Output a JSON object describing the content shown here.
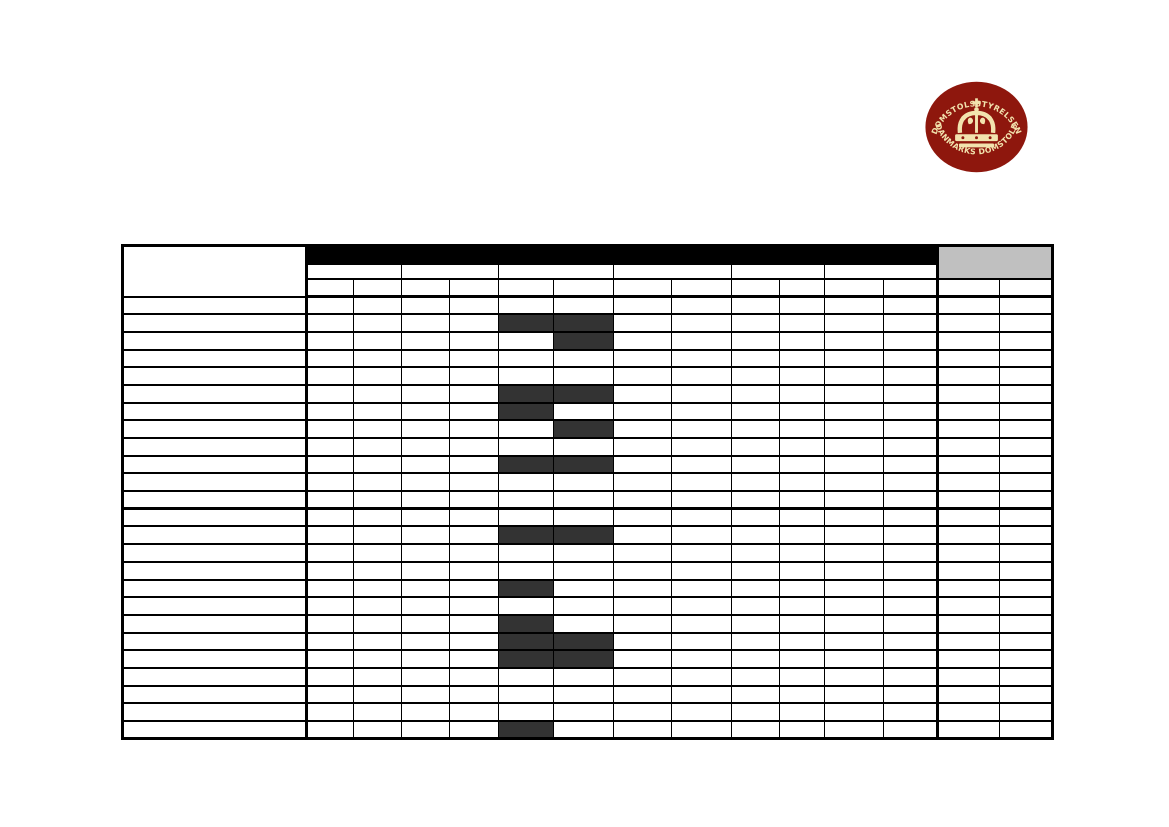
{
  "page": {
    "background_color": "#ffffff",
    "description_texts": {}
  },
  "logo": {
    "name": "danmarks-domstole-seal",
    "top_text": "DOMSTOLSSTYRELSEN",
    "bottom_text": "DANMARKS DOMSTOLE",
    "center_icon": "crown-icon",
    "background_color": "#8e170d",
    "foreground_color": "#f2e3ae"
  },
  "table": {
    "header": {
      "label_cell_text": "",
      "black_band_text": "",
      "black_band_color": "#000000",
      "gray_cell_text": "",
      "gray_cell_color": "#c0c0c0",
      "group_cells": [
        "",
        "",
        "",
        "",
        "",
        ""
      ],
      "sub_cells": [
        "",
        "",
        "",
        "",
        "",
        "",
        "",
        "",
        "",
        "",
        "",
        "",
        "",
        ""
      ]
    },
    "body": {
      "row_count": 25,
      "data_column_count": 14,
      "row_label_texts": [
        "",
        "",
        "",
        "",
        "",
        "",
        "",
        "",
        "",
        "",
        "",
        "",
        "",
        "",
        "",
        "",
        "",
        "",
        "",
        "",
        "",
        "",
        "",
        "",
        ""
      ],
      "filled_cell_color": "#333333",
      "filled_cells": [
        {
          "row": 2,
          "columns": [
            5,
            6
          ]
        },
        {
          "row": 3,
          "columns": [
            6
          ]
        },
        {
          "row": 6,
          "columns": [
            5,
            6
          ]
        },
        {
          "row": 7,
          "columns": [
            5
          ]
        },
        {
          "row": 8,
          "columns": [
            6
          ]
        },
        {
          "row": 10,
          "columns": [
            5,
            6
          ]
        },
        {
          "row": 14,
          "columns": [
            5,
            6
          ]
        },
        {
          "row": 17,
          "columns": [
            5
          ]
        },
        {
          "row": 19,
          "columns": [
            5
          ]
        },
        {
          "row": 20,
          "columns": [
            5,
            6
          ]
        },
        {
          "row": 21,
          "columns": [
            5,
            6
          ]
        },
        {
          "row": 25,
          "columns": [
            5
          ]
        }
      ],
      "thick_border_above_row": 13
    },
    "layout": {
      "label_column_width": 184,
      "data_column_widths": [
        47,
        48,
        48,
        49,
        55,
        60,
        58,
        60,
        48,
        45,
        59,
        54,
        62,
        53
      ],
      "header_row_heights": [
        19,
        14,
        18
      ],
      "body_row_height": 17.7,
      "gray_cell_spans_columns": [
        13,
        14
      ],
      "black_band_spans_columns": [
        1,
        12
      ]
    }
  }
}
